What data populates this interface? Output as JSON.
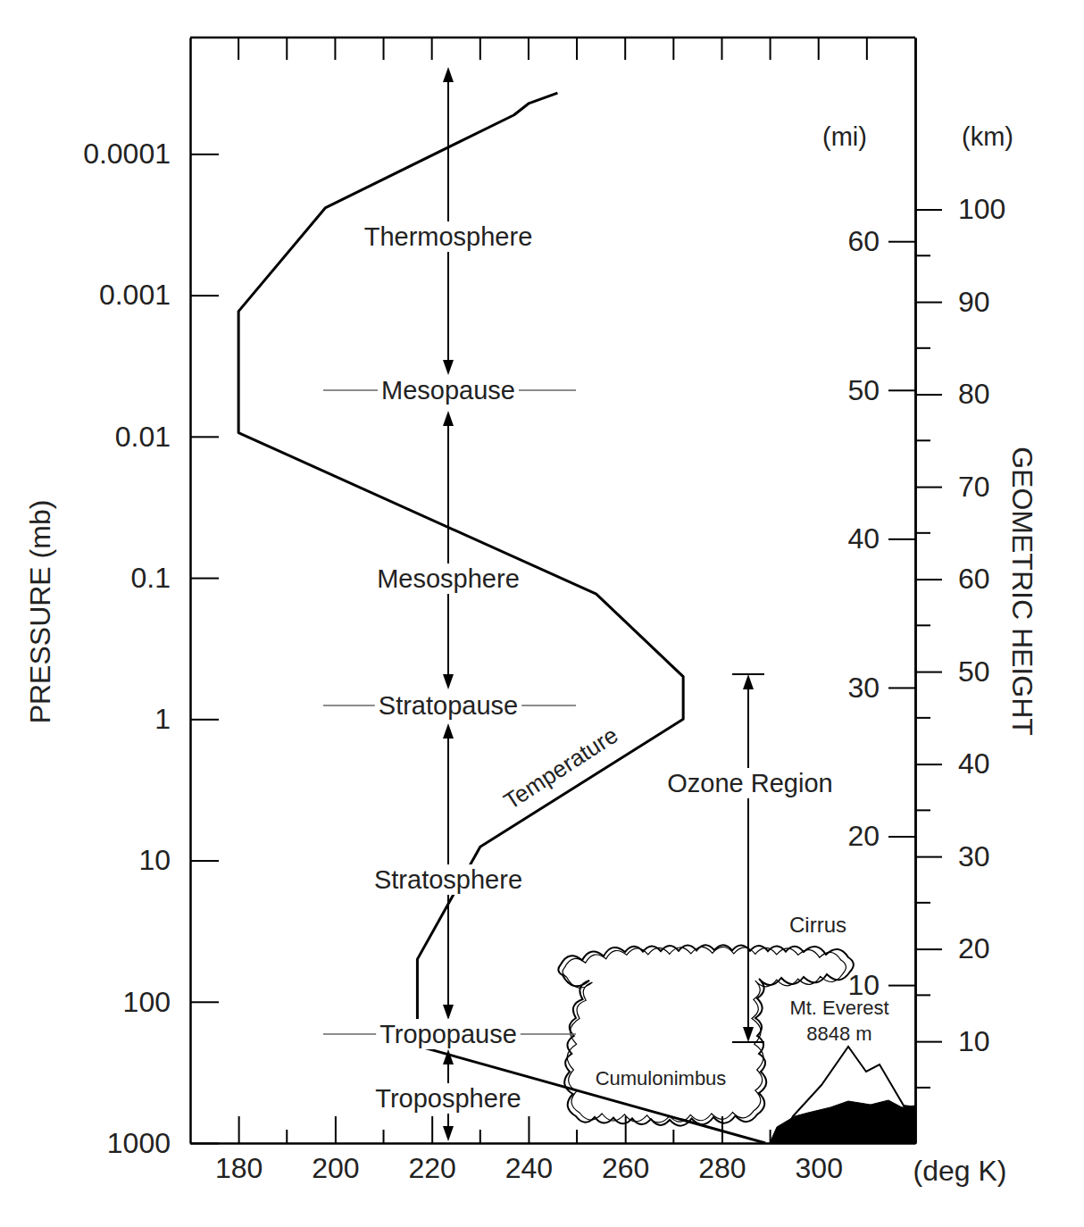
{
  "chart_data": {
    "type": "line",
    "x": [
      289,
      217,
      217,
      230,
      272,
      272,
      254,
      180,
      180,
      198,
      237,
      240,
      246
    ],
    "series": [
      {
        "name": "Temperature",
        "color": "#000000",
        "values": [
          1000,
          205,
          50,
          8,
          1,
          0.5,
          0.13,
          0.0094,
          0.0013,
          0.00024,
          5.3e-05,
          4.4e-05,
          3.7e-05
        ]
      }
    ],
    "xlabel": "(deg K)",
    "xlim": [
      170,
      320
    ],
    "xticks": [
      180,
      200,
      220,
      240,
      260,
      280,
      300
    ],
    "xticks_minor": [
      190,
      210,
      230,
      250,
      270,
      290,
      310
    ],
    "ylabel": "PRESSURE (mb)",
    "log": "y",
    "ylim": [
      1000,
      1.5e-05
    ],
    "yticks": [
      1000,
      100,
      10,
      1,
      0.1,
      0.01,
      0.001,
      0.0001
    ],
    "y2title": "GEOMETRIC HEIGHT",
    "y2label": "(mi)",
    "y2lim": [
      -0.62,
      73.7
    ],
    "y2ticks": [
      10,
      20,
      30,
      40,
      50,
      60
    ],
    "y3label": "(km)",
    "y3lim": [
      -1,
      118.6
    ],
    "y3ticks": [
      10,
      20,
      30,
      40,
      50,
      60,
      70,
      80,
      90,
      100
    ],
    "y3ticks_minor": [
      5,
      15,
      25,
      35,
      45,
      55,
      65,
      75,
      85,
      95
    ],
    "grid": false,
    "annotations": [
      "Thermosphere",
      "Mesopause",
      "Mesosphere",
      "Stratopause",
      "Stratosphere",
      "Tropopause",
      "Troposphere",
      "Ozone Region",
      "Cirrus",
      "Cumulonimbus",
      "Mt. Everest",
      "8848 m"
    ]
  }
}
